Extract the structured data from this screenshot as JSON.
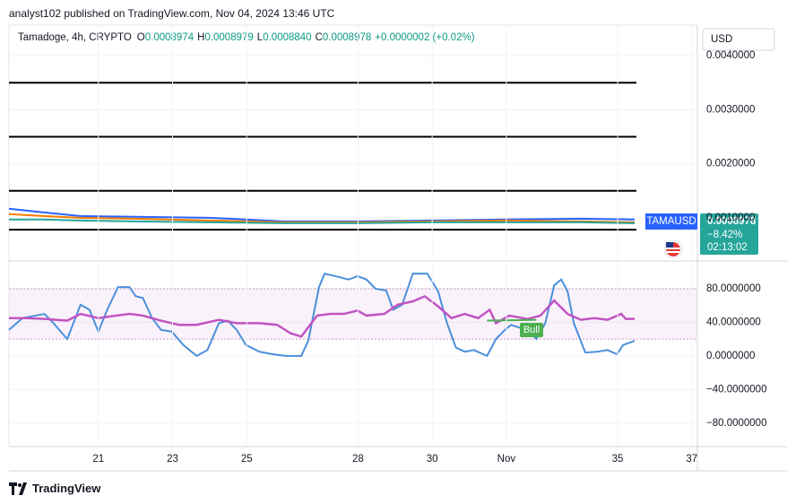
{
  "header": "analyst102 published on TradingView.com, Nov 04, 2024 13:46 UTC",
  "legend": {
    "symbol": "Tamadoge, 4h, CRYPTO",
    "ohlc": [
      {
        "label": "O",
        "value": "0.0008974"
      },
      {
        "label": "H",
        "value": "0.0008979"
      },
      {
        "label": "L",
        "value": "0.0008840"
      },
      {
        "label": "C",
        "value": "0.0008978"
      }
    ],
    "change": "+0.0000002 (+0.02%)"
  },
  "currency": "USD",
  "price_label": {
    "symbol": "TAMAUSD",
    "price": "0.0008978",
    "change": "−8.42%",
    "countdown": "02:13:02"
  },
  "footer": "TradingView",
  "chart_data": [
    {
      "type": "line",
      "xlim": [
        18.59,
        37.15
      ],
      "ylim": [
        0.0002,
        0.004567
      ],
      "yticks": [
        {
          "value": 0.004,
          "label": "0.0040000"
        },
        {
          "value": 0.003,
          "label": "0.0030000"
        },
        {
          "value": 0.002,
          "label": "0.0020000"
        },
        {
          "value": 0.001,
          "label": "0.0010000"
        }
      ],
      "hlines": [
        0.0035,
        0.0025,
        0.0015,
        0.00078
      ],
      "series": [
        {
          "color": "#2962ff",
          "x": [
            18.59,
            19.5,
            20.5,
            22,
            24,
            26,
            28,
            30,
            32,
            34,
            35.46
          ],
          "values": [
            0.001167,
            0.0011,
            0.001033,
            0.001017,
            0.001,
            0.000933,
            0.000933,
            0.00095,
            0.000967,
            0.000983,
            0.000967
          ]
        },
        {
          "color": "#f57c00",
          "x": [
            18.59,
            19.5,
            20.5,
            22,
            24,
            26,
            28,
            30,
            32,
            34,
            35.46
          ],
          "values": [
            0.001067,
            0.001033,
            0.001,
            0.000983,
            0.00095,
            0.000917,
            0.000917,
            0.000933,
            0.00095,
            0.000933,
            0.000917
          ]
        },
        {
          "color": "#26a69a",
          "x": [
            18.59,
            19.5,
            20.5,
            22,
            24,
            26,
            28,
            30,
            32,
            34,
            35.46
          ],
          "values": [
            0.000967,
            0.000967,
            0.00095,
            0.000933,
            0.000917,
            0.0009,
            0.0009,
            0.000917,
            0.000917,
            0.000917,
            0.0009
          ]
        }
      ]
    },
    {
      "type": "line",
      "xlim": [
        18.59,
        37.15
      ],
      "ylim": [
        -108,
        112
      ],
      "yticks": [
        {
          "value": 80,
          "label": "80.0000000"
        },
        {
          "value": 40,
          "label": "40.0000000"
        },
        {
          "value": 0,
          "label": "0.0000000"
        },
        {
          "value": -40,
          "label": "−40.0000000"
        },
        {
          "value": -80,
          "label": "−80.0000000"
        }
      ],
      "band": [
        20,
        80
      ],
      "xticks": [
        21,
        23,
        25,
        28,
        30,
        {
          "value": 32,
          "label": "Nov"
        },
        35,
        37
      ],
      "annotation": "Bull",
      "series": [
        {
          "color": "#4a8fdc",
          "x": [
            18.59,
            18.95,
            19.31,
            19.55,
            19.79,
            20.16,
            20.52,
            20.76,
            21.0,
            21.24,
            21.53,
            21.84,
            22.01,
            22.2,
            22.45,
            22.69,
            22.98,
            23.29,
            23.65,
            23.94,
            24.25,
            24.49,
            24.73,
            24.98,
            25.34,
            25.7,
            26.06,
            26.47,
            26.66,
            26.95,
            27.1,
            27.39,
            27.75,
            27.99,
            28.23,
            28.47,
            28.76,
            28.95,
            29.19,
            29.48,
            29.87,
            30.16,
            30.4,
            30.64,
            30.88,
            31.12,
            31.48,
            31.72,
            31.96,
            32.13,
            32.33,
            32.57,
            32.81,
            33.05,
            33.29,
            33.48,
            33.65,
            33.82,
            34.13,
            34.45,
            34.73,
            34.98,
            35.15,
            35.46
          ],
          "values": [
            31,
            45,
            48,
            50,
            39,
            20,
            61,
            55,
            29,
            55,
            82,
            82,
            71,
            69,
            45,
            31,
            29,
            13,
            0,
            7,
            39,
            42,
            31,
            13,
            5,
            2,
            0,
            0,
            18,
            82,
            98,
            95,
            91,
            95,
            91,
            80,
            78,
            55,
            61,
            98,
            98,
            77,
            39,
            10,
            5,
            7,
            0,
            20,
            31,
            37,
            34,
            31,
            20,
            39,
            84,
            91,
            77,
            39,
            4,
            5,
            7,
            2,
            13,
            18
          ]
        },
        {
          "color": "#c154c1",
          "x": [
            18.59,
            19.07,
            19.55,
            20.16,
            20.52,
            21.0,
            21.48,
            21.84,
            22.2,
            22.69,
            23.17,
            23.65,
            24.25,
            24.73,
            25.34,
            25.82,
            26.18,
            26.47,
            26.9,
            27.26,
            27.62,
            27.99,
            28.23,
            28.71,
            29.07,
            29.48,
            29.8,
            30.16,
            30.52,
            30.88,
            31.24,
            31.55,
            31.72,
            32.08,
            32.57,
            32.92,
            33.29,
            33.65,
            34.01,
            34.37,
            34.73,
            35.1,
            35.22,
            35.46
          ],
          "values": [
            45,
            45,
            44,
            42,
            50,
            45,
            48,
            50,
            48,
            42,
            37,
            37,
            43,
            39,
            39,
            37,
            27,
            23,
            48,
            50,
            50,
            54,
            48,
            50,
            61,
            65,
            71,
            59,
            45,
            50,
            45,
            55,
            39,
            48,
            44,
            48,
            66,
            50,
            43,
            45,
            43,
            50,
            44,
            44
          ]
        },
        {
          "color": "#4caf50",
          "x": [
            31.48,
            32.81
          ],
          "values": [
            42,
            43
          ]
        }
      ]
    }
  ]
}
